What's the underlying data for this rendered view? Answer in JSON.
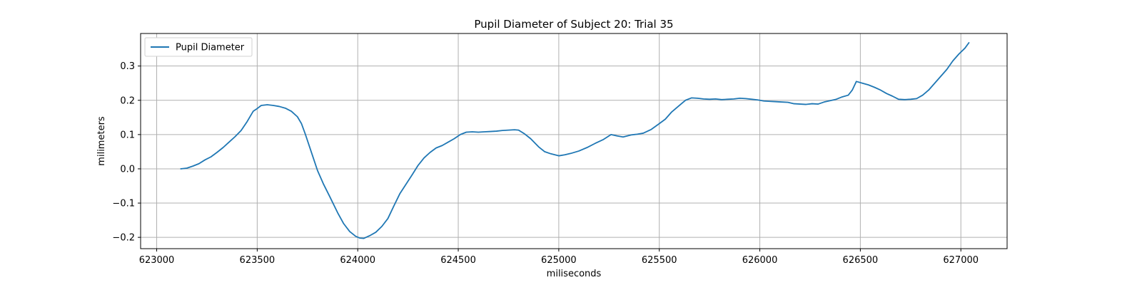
{
  "chart_data": {
    "type": "line",
    "title": "Pupil Diameter of Subject 20: Trial 35",
    "xlabel": "miliseconds",
    "ylabel": "milimeters",
    "xlim": [
      622920,
      627230
    ],
    "ylim": [
      -0.233,
      0.395
    ],
    "x_ticks": [
      623000,
      623500,
      624000,
      624500,
      625000,
      625500,
      626000,
      626500,
      627000
    ],
    "y_ticks": [
      -0.2,
      -0.1,
      0.0,
      0.1,
      0.2,
      0.3
    ],
    "y_tick_labels": [
      "−0.2",
      "−0.1",
      "0.0",
      "0.1",
      "0.2",
      "0.3"
    ],
    "grid": true,
    "legend_placement": "top-left",
    "series": [
      {
        "name": "Pupil Diameter",
        "color": "#1f77b4",
        "x": [
          623120,
          623150,
          623180,
          623210,
          623240,
          623270,
          623300,
          623330,
          623360,
          623390,
          623420,
          623450,
          623480,
          623500,
          623520,
          623550,
          623580,
          623610,
          623640,
          623670,
          623700,
          623720,
          623740,
          623760,
          623780,
          623800,
          623830,
          623860,
          623900,
          623930,
          623960,
          623990,
          624010,
          624030,
          624060,
          624090,
          624120,
          624150,
          624180,
          624210,
          624240,
          624270,
          624300,
          624330,
          624360,
          624390,
          624420,
          624450,
          624480,
          624510,
          624540,
          624570,
          624600,
          624630,
          624660,
          624690,
          624720,
          624750,
          624780,
          624800,
          624830,
          624860,
          624900,
          624930,
          624960,
          625000,
          625030,
          625060,
          625100,
          625140,
          625180,
          625220,
          625260,
          625290,
          625320,
          625360,
          625390,
          625420,
          625460,
          625500,
          625530,
          625560,
          625600,
          625630,
          625660,
          625690,
          625720,
          625750,
          625780,
          625810,
          625840,
          625870,
          625900,
          625930,
          625960,
          625990,
          626020,
          626050,
          626080,
          626110,
          626140,
          626170,
          626200,
          626230,
          626260,
          626290,
          626320,
          626350,
          626380,
          626410,
          626440,
          626460,
          626480,
          626510,
          626540,
          626570,
          626600,
          626630,
          626660,
          626690,
          626720,
          626750,
          626780,
          626810,
          626840,
          626870,
          626900,
          626930,
          626960,
          626990,
          627020,
          627040
        ],
        "values": [
          0.0,
          0.002,
          0.008,
          0.015,
          0.026,
          0.035,
          0.048,
          0.062,
          0.078,
          0.094,
          0.112,
          0.138,
          0.168,
          0.176,
          0.185,
          0.187,
          0.185,
          0.182,
          0.177,
          0.168,
          0.152,
          0.132,
          0.1,
          0.065,
          0.03,
          -0.005,
          -0.045,
          -0.08,
          -0.128,
          -0.16,
          -0.183,
          -0.197,
          -0.202,
          -0.203,
          -0.195,
          -0.185,
          -0.168,
          -0.145,
          -0.108,
          -0.072,
          -0.045,
          -0.018,
          0.01,
          0.032,
          0.048,
          0.061,
          0.068,
          0.078,
          0.088,
          0.1,
          0.107,
          0.108,
          0.107,
          0.108,
          0.109,
          0.11,
          0.112,
          0.113,
          0.114,
          0.113,
          0.102,
          0.088,
          0.064,
          0.05,
          0.044,
          0.038,
          0.041,
          0.045,
          0.052,
          0.062,
          0.074,
          0.085,
          0.1,
          0.096,
          0.093,
          0.099,
          0.101,
          0.104,
          0.115,
          0.132,
          0.145,
          0.165,
          0.185,
          0.2,
          0.207,
          0.206,
          0.204,
          0.203,
          0.204,
          0.202,
          0.203,
          0.204,
          0.206,
          0.205,
          0.203,
          0.201,
          0.198,
          0.197,
          0.196,
          0.195,
          0.194,
          0.19,
          0.189,
          0.188,
          0.19,
          0.189,
          0.195,
          0.199,
          0.203,
          0.21,
          0.215,
          0.23,
          0.255,
          0.25,
          0.245,
          0.238,
          0.23,
          0.22,
          0.212,
          0.203,
          0.202,
          0.203,
          0.205,
          0.215,
          0.23,
          0.25,
          0.27,
          0.29,
          0.315,
          0.335,
          0.352,
          0.368
        ]
      }
    ]
  }
}
